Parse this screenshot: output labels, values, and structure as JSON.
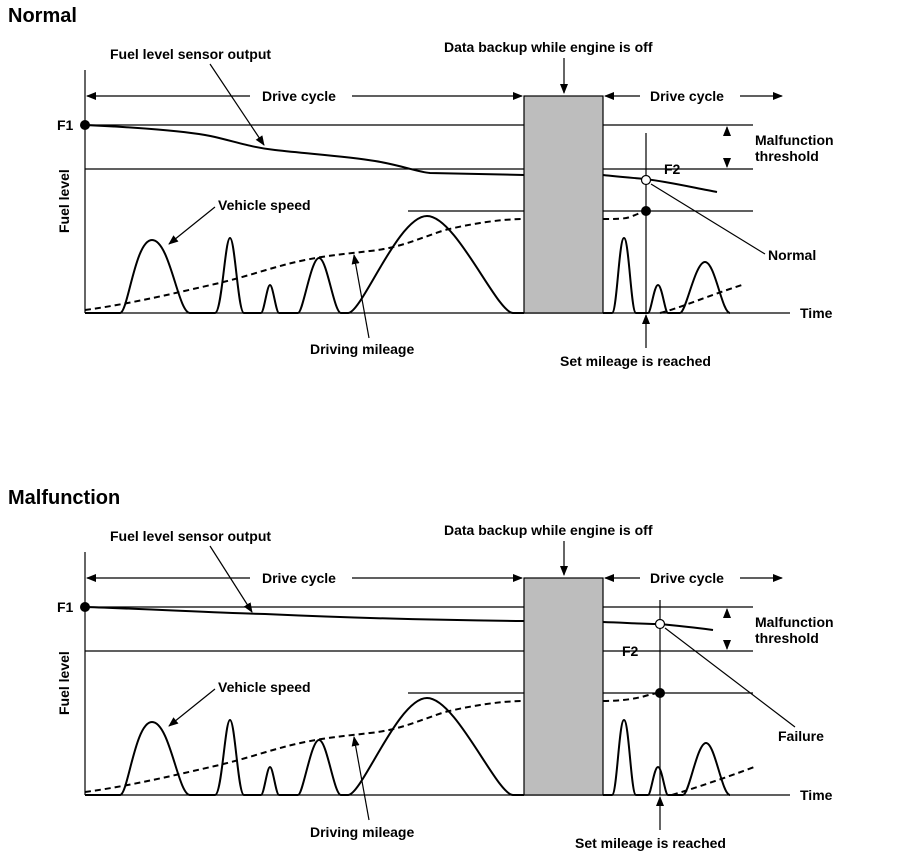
{
  "panels": [
    {
      "title": "Normal",
      "fuel_sensor_label": "Fuel level sensor output",
      "backup_label": "Data backup while engine is off",
      "drive_cycle_1": "Drive cycle",
      "drive_cycle_2": "Drive cycle",
      "f1": "F1",
      "f2": "F2",
      "malfunction_line1": "Malfunction",
      "malfunction_line2": "threshold",
      "y_axis": "Fuel level",
      "vehicle_speed_label": "Vehicle speed",
      "result_label": "Normal",
      "time_label": "Time",
      "mileage_label": "Driving mileage",
      "set_mileage_label": "Set mileage is reached"
    },
    {
      "title": "Malfunction",
      "fuel_sensor_label": "Fuel level sensor output",
      "backup_label": "Data backup while engine is off",
      "drive_cycle_1": "Drive cycle",
      "drive_cycle_2": "Drive cycle",
      "f1": "F1",
      "f2": "F2",
      "malfunction_line1": "Malfunction",
      "malfunction_line2": "threshold",
      "y_axis": "Fuel level",
      "vehicle_speed_label": "Vehicle speed",
      "result_label": "Failure",
      "time_label": "Time",
      "mileage_label": "Driving mileage",
      "set_mileage_label": "Set mileage is reached"
    }
  ]
}
